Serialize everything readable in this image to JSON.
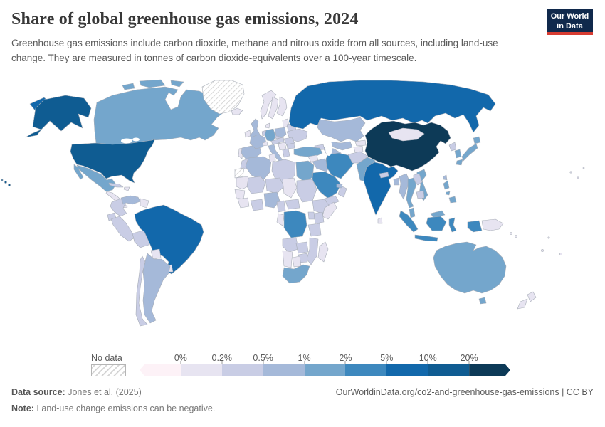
{
  "header": {
    "title": "Share of global greenhouse gas emissions, 2024",
    "subtitle": "Greenhouse gas emissions include carbon dioxide, methane and nitrous oxide from all sources, including land-use change. They are measured in tonnes of carbon dioxide-equivalents over a 100-year timescale.",
    "logo_line1": "Our World",
    "logo_line2": "in Data",
    "logo_background": "#10294c",
    "logo_accent": "#d73c32"
  },
  "chart_data": {
    "type": "choropleth-map",
    "title": "Share of global greenhouse gas emissions, 2024",
    "year": "2024",
    "unit": "% of global greenhouse gas emissions",
    "legend": {
      "no_data_label": "No data",
      "tick_labels": [
        "0%",
        "0.2%",
        "0.5%",
        "1%",
        "2%",
        "5%",
        "10%",
        "20%"
      ],
      "bins": [
        {
          "range": "<0%",
          "color": "#fdf2f7"
        },
        {
          "range": "0–0.2%",
          "color": "#e7e4f1"
        },
        {
          "range": "0.2–0.5%",
          "color": "#c9cde5"
        },
        {
          "range": "0.5–1%",
          "color": "#a5b9d9"
        },
        {
          "range": "1–2%",
          "color": "#74a6cc"
        },
        {
          "range": "2–5%",
          "color": "#3d88be"
        },
        {
          "range": "5–10%",
          "color": "#1268ab"
        },
        {
          "range": "10–20%",
          "color": "#0f5c92"
        },
        {
          "range": "20%+",
          "color": "#0d3a57"
        }
      ]
    },
    "countries": {
      "United States": "10–20%",
      "Canada": "1–2%",
      "Greenland": "No data",
      "Mexico": "1–2%",
      "Cuba": "0.2–0.5%",
      "Hispaniola": "0–0.2%",
      "Central America": "0–0.2%",
      "Colombia": "0.2–0.5%",
      "Venezuela": "0.5–1%",
      "Guyana": "0–0.2%",
      "Ecuador": "0.2–0.5%",
      "Peru": "0.2–0.5%",
      "Bolivia": "0.2–0.5%",
      "Brazil": "5–10%",
      "Paraguay": "0–0.2%",
      "Uruguay": "0–0.2%",
      "Argentina": "0.5–1%",
      "Chile": "0.2–0.5%",
      "Iceland": "0–0.2%",
      "Ireland": "0–0.2%",
      "United Kingdom": "0.5–1%",
      "Norway": "0–0.2%",
      "Sweden": "0–0.2%",
      "Finland": "0–0.2%",
      "Denmark": "0–0.2%",
      "Portugal": "0–0.2%",
      "Spain": "0.5–1%",
      "France": "0.5–1%",
      "Benelux": "0.2–0.5%",
      "Germany": "1–2%",
      "Switzerland": "0–0.2%",
      "Italy": "0.5–1%",
      "Czechia": "0.2–0.5%",
      "Austria": "0.2–0.5%",
      "Poland": "0.5–1%",
      "Baltic states": "0–0.2%",
      "Belarus": "0.2–0.5%",
      "Ukraine": "0.2–0.5%",
      "Romania": "0.2–0.5%",
      "Hungary": "0.2–0.5%",
      "Balkans": "0–0.2%",
      "Bulgaria": "0.2–0.5%",
      "Greece": "0.2–0.5%",
      "Russia": "5–10%",
      "Kazakhstan": "0.5–1%",
      "Uzbekistan": "0.5–1%",
      "Turkmenistan": "0.5–1%",
      "Kyrgyzstan": "0–0.2%",
      "Tajikistan": "0–0.2%",
      "Caucasus": "0.2–0.5%",
      "Turkey": "1–2%",
      "Syria": "0–0.2%",
      "Jordan and Israel": "0–0.2%",
      "Iraq": "0.5–1%",
      "Iran": "2–5%",
      "Saudi Arabia": "2–5%",
      "Yemen": "0.2–0.5%",
      "Oman": "0.2–0.5%",
      "United Arab Emirates": "0.5–1%",
      "Afghanistan": "0.2–0.5%",
      "Pakistan": "1–2%",
      "Morocco": "0.2–0.5%",
      "Western Sahara": "No data",
      "Algeria": "0.5–1%",
      "Tunisia": "0–0.2%",
      "Libya": "0.2–0.5%",
      "Egypt": "1–2%",
      "Mauritania": "0–0.2%",
      "Mali": "0.2–0.5%",
      "Niger": "0.2–0.5%",
      "Chad": "0–0.2%",
      "Sudan": "0.2–0.5%",
      "Senegal": "0–0.2%",
      "Guinea": "0–0.2%",
      "Ivory Coast and Ghana": "0.2–0.5%",
      "Nigeria": "0.5–1%",
      "Cameroon": "0.2–0.5%",
      "Central African Republic": "0.2–0.5%",
      "Ethiopia": "0.2–0.5%",
      "Somalia": "0–0.2%",
      "Kenya": "0.2–0.5%",
      "Uganda": "0.2–0.5%",
      "Democratic Republic of Congo": "2–5%",
      "Congo and Gabon": "0–0.2%",
      "Angola": "0.2–0.5%",
      "Zambia": "0.2–0.5%",
      "Tanzania": "0.2–0.5%",
      "Mozambique": "0.2–0.5%",
      "Zimbabwe": "0.2–0.5%",
      "Botswana": "0–0.2%",
      "Namibia": "0–0.2%",
      "South Africa": "1–2%",
      "Madagascar": "0–0.2%",
      "India": "5–10%",
      "Nepal": "0.2–0.5%",
      "Bangladesh": "0.5–1%",
      "Sri Lanka": "0–0.2%",
      "Myanmar": "0.5–1%",
      "China": "20%+",
      "Mongolia": "0–0.2%",
      "North Korea": "0.2–0.5%",
      "South Korea": "1–2%",
      "Japan": "1–2%",
      "Taiwan": "0.5–1%",
      "Vietnam": "1–2%",
      "Laos": "0.2–0.5%",
      "Thailand": "1–2%",
      "Cambodia": "0.2–0.5%",
      "Malaysia": "1–2%",
      "Indonesia": "2–5%",
      "Papua New Guinea": "0–0.2%",
      "Philippines": "1–2%",
      "Australia": "1–2%",
      "New Zealand": "0–0.2%",
      "Pacific Islands": "0–0.2%"
    }
  },
  "footer": {
    "data_source_label": "Data source:",
    "data_source_value": "Jones et al. (2025)",
    "link": "OurWorldinData.org/co2-and-greenhouse-gas-emissions | CC BY",
    "note_label": "Note:",
    "note_value": "Land-use change emissions can be negative."
  }
}
